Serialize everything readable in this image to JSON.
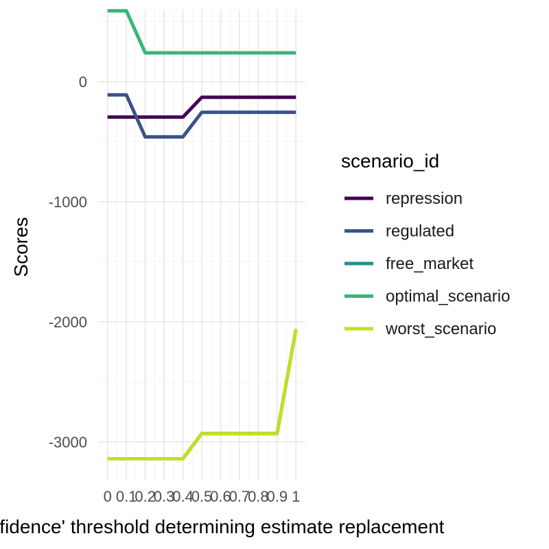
{
  "chart_data": {
    "type": "line",
    "xlabel": "'Confidence' threshold determining estimate replacement",
    "ylabel": "Scores",
    "x": [
      0,
      0.1,
      0.2,
      0.3,
      0.4,
      0.5,
      0.6,
      0.7,
      0.8,
      0.9,
      1
    ],
    "x_ticks": [
      "0",
      "0.1",
      "0.2",
      "0.3",
      "0.4",
      "0.5",
      "0.6",
      "0.7",
      "0.8",
      "0.9",
      "1"
    ],
    "y_ticks": [
      0,
      -1000,
      -2000,
      -3000
    ],
    "y_tick_labels": [
      "0",
      "-1000",
      "-2000",
      "-3000"
    ],
    "xlim": [
      -0.05,
      1.05
    ],
    "ylim": [
      -3320,
      600
    ],
    "grid": true,
    "legend": {
      "title": "scenario_id",
      "position": "right"
    },
    "series": [
      {
        "name": "repression",
        "color": "#440154",
        "values": [
          -295,
          -295,
          -295,
          -295,
          -295,
          -130,
          -130,
          -130,
          -130,
          -130,
          -130
        ]
      },
      {
        "name": "regulated",
        "color": "#3b528b",
        "values": [
          -110,
          -110,
          -460,
          -460,
          -460,
          -255,
          -255,
          -255,
          -255,
          -255,
          -255
        ]
      },
      {
        "name": "free_market",
        "color": "#21908c",
        "values": [
          -3140,
          -3140,
          -3140,
          -3140,
          -3140,
          -2930,
          -2930,
          -2930,
          -2930,
          -2930,
          -2060
        ]
      },
      {
        "name": "optimal_scenario",
        "color": "#35b779",
        "values": [
          590,
          590,
          240,
          240,
          240,
          240,
          240,
          240,
          240,
          240,
          240
        ]
      },
      {
        "name": "worst_scenario",
        "color": "#c2df23",
        "values": [
          -3140,
          -3140,
          -3140,
          -3140,
          -3140,
          -2930,
          -2930,
          -2930,
          -2930,
          -2930,
          -2060
        ]
      }
    ]
  }
}
